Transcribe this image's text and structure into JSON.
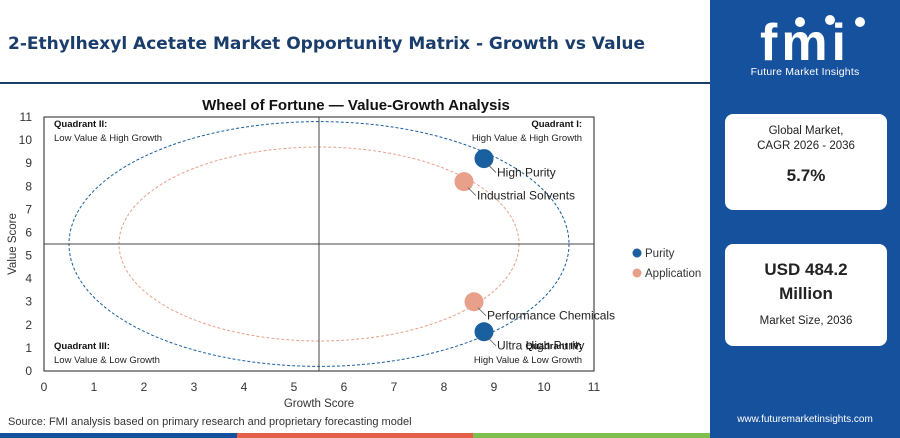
{
  "header": {
    "title": "2-Ethylhexyl Acetate Market Opportunity Matrix - Growth vs Value"
  },
  "footer": {
    "source": "Source: FMI analysis based on primary research and proprietary forecasting model",
    "bar_colors": [
      "#16519e",
      "#e4604a",
      "#7fbf4d"
    ]
  },
  "brand": {
    "logo_text": "fmi",
    "logo_subtitle": "Future Market Insights",
    "url": "www.futuremarketinsights.com",
    "color": "#16519e"
  },
  "stats": [
    {
      "label_line1": "Global Market,",
      "label_line2": "CAGR 2026 - 2036",
      "value": "5.7%"
    },
    {
      "value_line1": "USD 484.2",
      "value_line2": "Million",
      "label": "Market Size, 2036"
    }
  ],
  "chart_data": {
    "type": "scatter",
    "title": "Wheel of Fortune — Value-Growth Analysis",
    "xlabel": "Growth Score",
    "ylabel": "Value Score",
    "xlim": [
      0,
      11
    ],
    "ylim": [
      0,
      11
    ],
    "xticks": [
      0,
      1,
      2,
      3,
      4,
      5,
      6,
      7,
      8,
      9,
      10,
      11
    ],
    "yticks": [
      0,
      1,
      2,
      3,
      4,
      5,
      6,
      7,
      8,
      9,
      10,
      11
    ],
    "divider_x": 5.5,
    "divider_y": 5.5,
    "legend_position": "right",
    "series": [
      {
        "name": "Purity",
        "color": "#1a5f9e",
        "points": [
          {
            "label": "High Purity",
            "x": 8.8,
            "y": 9.2
          },
          {
            "label": "Ultra High Purity",
            "x": 8.8,
            "y": 1.7
          }
        ]
      },
      {
        "name": "Application",
        "color": "#e8a08a",
        "points": [
          {
            "label": "Industrial Solvents",
            "x": 8.4,
            "y": 8.2
          },
          {
            "label": "Performance Chemicals",
            "x": 8.6,
            "y": 3.0
          }
        ]
      }
    ],
    "ellipses": [
      {
        "color": "#1a5f9e",
        "cx": 5.5,
        "cy": 5.5,
        "rx": 5.0,
        "ry": 5.3
      },
      {
        "color": "#e8a08a",
        "cx": 5.5,
        "cy": 5.5,
        "rx": 4.0,
        "ry": 4.2
      }
    ],
    "quadrants": [
      {
        "title": "Quadrant II:",
        "subtitle": "Low Value & High Growth",
        "pos": "top-left"
      },
      {
        "title": "Quadrant I:",
        "subtitle": "High Value & High Growth",
        "pos": "top-right"
      },
      {
        "title": "Quadrant III:",
        "subtitle": "Low Value & Low Growth",
        "pos": "bottom-left"
      },
      {
        "title": "Quadrant IV:",
        "subtitle": "High Value & Low Growth",
        "pos": "bottom-right"
      }
    ]
  }
}
